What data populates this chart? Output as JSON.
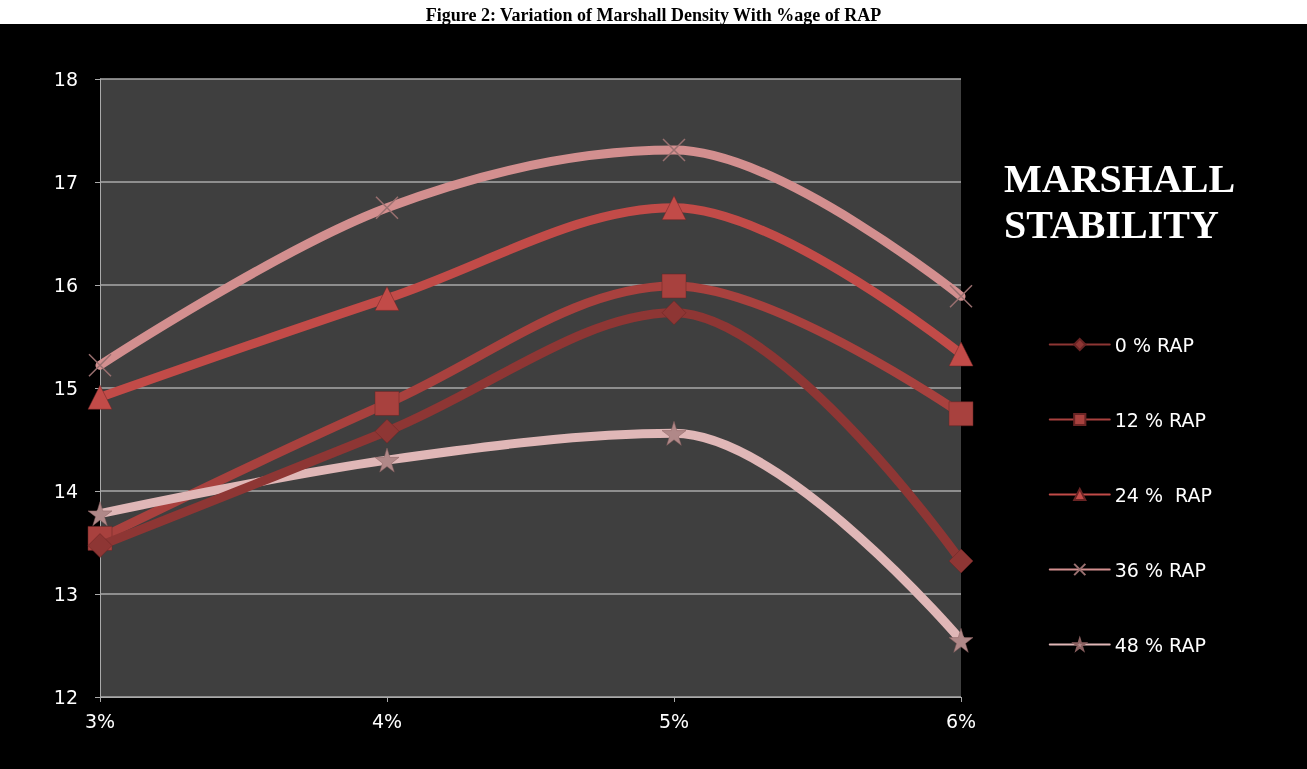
{
  "chart_data": {
    "type": "line",
    "title": "Figure 2: Variation of Marshall Density With %age of RAP",
    "legend_title": "MARSHALL STABILITY",
    "categories": [
      "3%",
      "4%",
      "5%",
      "6%"
    ],
    "series": [
      {
        "name": "0 % RAP",
        "color": "#8e3634",
        "marker": "diamond",
        "values": [
          13.47,
          14.58,
          15.73,
          13.32
        ]
      },
      {
        "name": "12 % RAP",
        "color": "#a8413e",
        "marker": "square",
        "values": [
          13.54,
          14.85,
          15.99,
          14.75
        ]
      },
      {
        "name": "24 %  RAP",
        "color": "#c24b48",
        "marker": "triangle",
        "values": [
          14.91,
          15.87,
          16.75,
          15.33
        ]
      },
      {
        "name": "36 % RAP",
        "color": "#d38f8f",
        "marker": "cross",
        "values": [
          15.22,
          16.75,
          17.31,
          15.89
        ]
      },
      {
        "name": "48 % RAP",
        "color": "#e0b7b7",
        "marker": "star",
        "values": [
          13.78,
          14.3,
          14.56,
          12.55
        ]
      }
    ],
    "ylim": [
      12,
      18
    ],
    "yticks": [
      12,
      13,
      14,
      15,
      16,
      17,
      18
    ],
    "grid": "y",
    "legend": "right"
  }
}
